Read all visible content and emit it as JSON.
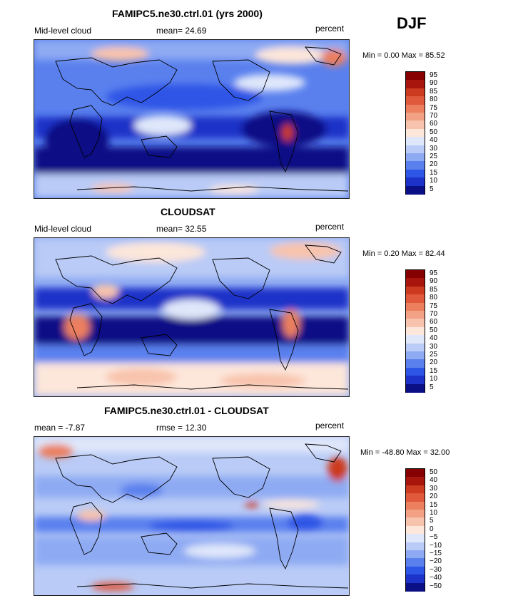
{
  "season": "DJF",
  "palette": [
    "#0a0f85",
    "#1c32c8",
    "#2d55e6",
    "#5a80ee",
    "#8eaaf3",
    "#b9cbf6",
    "#dfe7fa",
    "#fde6da",
    "#f8c3ac",
    "#f2a184",
    "#eb7f5e",
    "#e0593c",
    "#cc3a1f",
    "#a8150c",
    "#850000"
  ],
  "panels": [
    {
      "title": "FAMIPC5.ne30.ctrl.01 (yrs 2000)",
      "left_label": "Mid-level cloud",
      "stat": "mean=  24.69",
      "units": "percent",
      "minmax": "Min =   0.00 Max =  85.52",
      "levels": [
        "95",
        "90",
        "85",
        "80",
        "75",
        "70",
        "60",
        "50",
        "40",
        "30",
        "25",
        "20",
        "15",
        "10",
        "5"
      ]
    },
    {
      "title": "CLOUDSAT",
      "left_label": "Mid-level cloud",
      "stat": "mean=  32.55",
      "units": "percent",
      "minmax": "Min =   0.20 Max =  82.44",
      "levels": [
        "95",
        "90",
        "85",
        "80",
        "75",
        "70",
        "60",
        "50",
        "40",
        "30",
        "25",
        "20",
        "15",
        "10",
        "5"
      ]
    },
    {
      "title": "FAMIPC5.ne30.ctrl.01 - CLOUDSAT",
      "left_label": "mean =  -7.87",
      "stat": "rmse =  12.30",
      "units": "percent",
      "minmax": "Min = -48.80 Max =  32.00",
      "levels": [
        "50",
        "40",
        "30",
        "20",
        "15",
        "10",
        "5",
        "0",
        "-5",
        "-10",
        "-15",
        "-20",
        "-30",
        "-40",
        "-50"
      ]
    }
  ]
}
